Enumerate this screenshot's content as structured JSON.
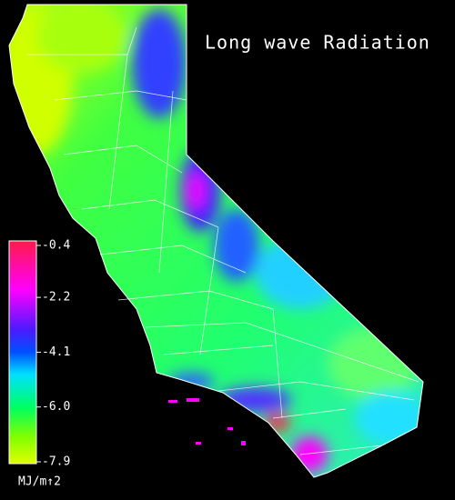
{
  "map": {
    "title": "Long wave Radiation",
    "colorbar": {
      "ticks": [
        -0.4,
        -2.2,
        -4.1,
        {
          "value": -6,
          "label": "-6.0"
        },
        -7.9
      ],
      "unit": "MJ/m↑2"
    }
  }
}
